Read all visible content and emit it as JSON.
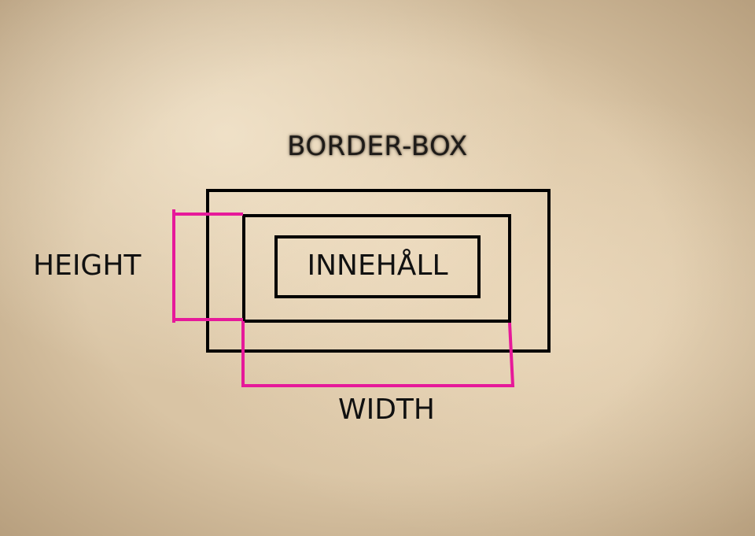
{
  "diagram": {
    "title": "BORDER-BOX",
    "labels": {
      "height": "HEIGHT",
      "content": "INNEHÅLL",
      "width": "WIDTH"
    },
    "colors": {
      "box_stroke": "#000000",
      "dimension_stroke": "#e6199a",
      "background": "#d9c4a4"
    }
  }
}
